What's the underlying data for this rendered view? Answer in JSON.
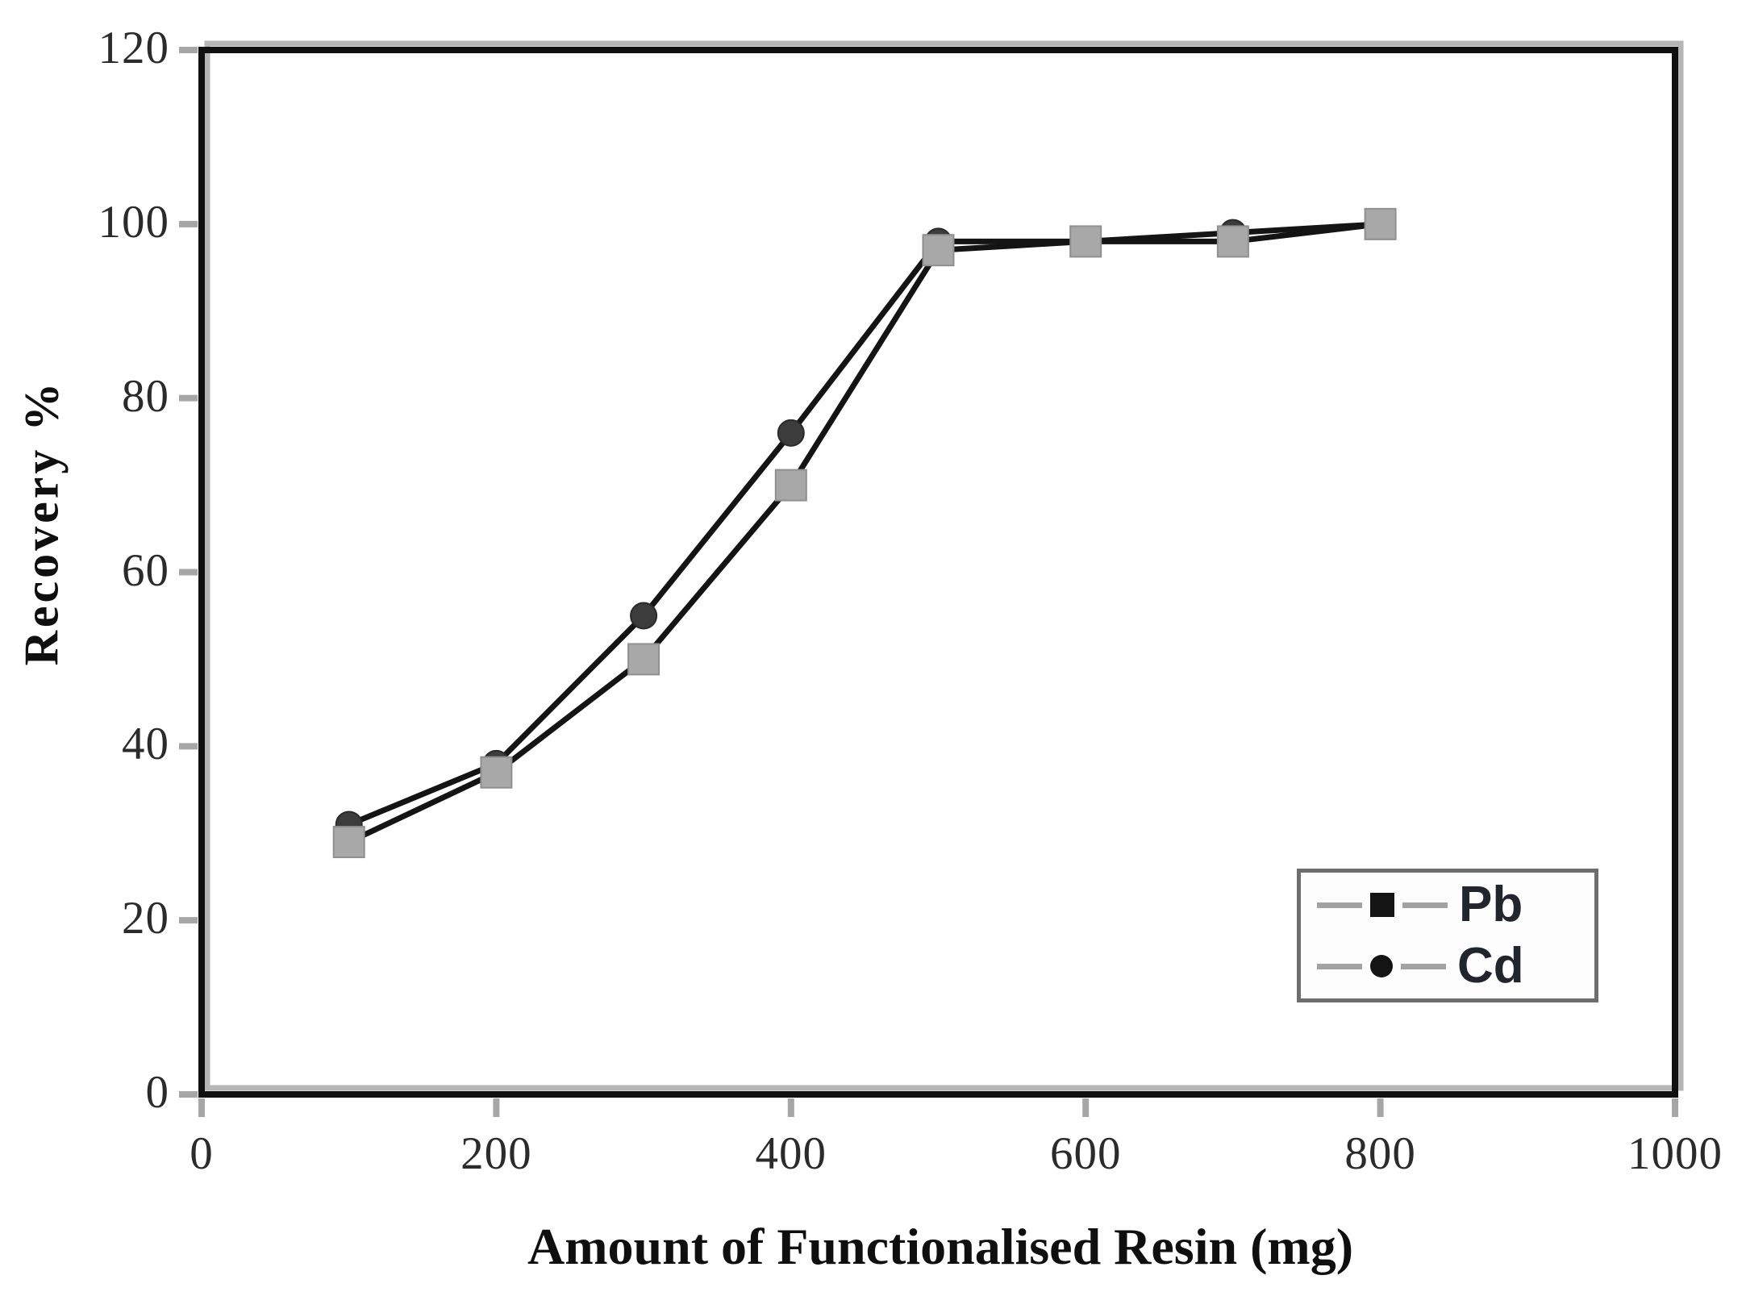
{
  "chart_data": {
    "type": "line",
    "title": "",
    "xlabel": "Amount of Functionalised Resin (mg)",
    "ylabel": "Recovery %",
    "xlim": [
      0,
      1000
    ],
    "ylim": [
      0,
      120
    ],
    "x_ticks": [
      0,
      200,
      400,
      600,
      800,
      1000
    ],
    "y_ticks": [
      0,
      20,
      40,
      60,
      80,
      100,
      120
    ],
    "grid": false,
    "legend_position": "lower-right",
    "x": [
      100,
      200,
      300,
      400,
      500,
      600,
      700,
      800
    ],
    "series": [
      {
        "name": "Pb",
        "marker": "square",
        "marker_color": "#a8a8a8",
        "marker_edge_color": "#8f8f8f",
        "line_color": "#141414",
        "values": [
          29,
          37,
          50,
          70,
          97,
          98,
          98,
          100
        ]
      },
      {
        "name": "Cd",
        "marker": "circle",
        "marker_color": "#3c3c3c",
        "marker_edge_color": "#2a2a2a",
        "line_color": "#141414",
        "values": [
          31,
          38,
          55,
          76,
          98,
          98,
          99,
          100
        ]
      }
    ],
    "frame_color": "#101010",
    "frame_shadow_color": "#b6b6b6",
    "tick_color": "#a6a6a6"
  }
}
